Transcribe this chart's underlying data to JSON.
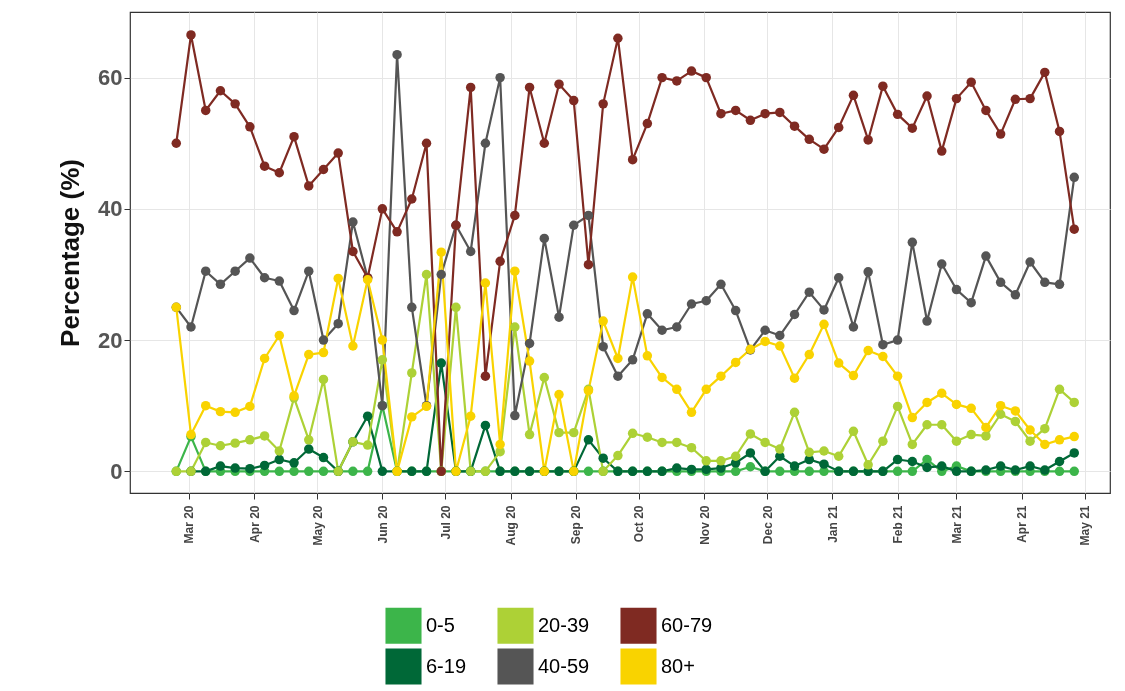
{
  "chart_data": {
    "type": "line",
    "ylabel": "Percentage (%)",
    "marker": "circle",
    "line_style": "solid",
    "grid": true,
    "legend": "bottom",
    "x": [
      "2020-02-24",
      "2020-03-02",
      "2020-03-09",
      "2020-03-16",
      "2020-03-23",
      "2020-03-30",
      "2020-04-06",
      "2020-04-13",
      "2020-04-20",
      "2020-04-27",
      "2020-05-04",
      "2020-05-11",
      "2020-05-18",
      "2020-05-25",
      "2020-06-01",
      "2020-06-08",
      "2020-06-15",
      "2020-06-22",
      "2020-06-29",
      "2020-07-06",
      "2020-07-13",
      "2020-07-20",
      "2020-07-27",
      "2020-08-03",
      "2020-08-10",
      "2020-08-17",
      "2020-08-24",
      "2020-08-31",
      "2020-09-07",
      "2020-09-14",
      "2020-09-21",
      "2020-09-28",
      "2020-10-05",
      "2020-10-12",
      "2020-10-19",
      "2020-10-26",
      "2020-11-02",
      "2020-11-09",
      "2020-11-16",
      "2020-11-23",
      "2020-11-30",
      "2020-12-07",
      "2020-12-14",
      "2020-12-21",
      "2020-12-28",
      "2021-01-04",
      "2021-01-11",
      "2021-01-18",
      "2021-01-25",
      "2021-02-01",
      "2021-02-08",
      "2021-02-15",
      "2021-02-22",
      "2021-03-01",
      "2021-03-08",
      "2021-03-15",
      "2021-03-22",
      "2021-03-29",
      "2021-04-05",
      "2021-04-12",
      "2021-04-19",
      "2021-04-26"
    ],
    "xlim": [
      "2020-02-02",
      "2021-05-13"
    ],
    "xticks": [
      {
        "value": "2020-03-01",
        "label": "Mar 20"
      },
      {
        "value": "2020-04-01",
        "label": "Apr 20"
      },
      {
        "value": "2020-05-01",
        "label": "May 20"
      },
      {
        "value": "2020-06-01",
        "label": "Jun 20"
      },
      {
        "value": "2020-07-01",
        "label": "Jul 20"
      },
      {
        "value": "2020-08-01",
        "label": "Aug 20"
      },
      {
        "value": "2020-09-01",
        "label": "Sep 20"
      },
      {
        "value": "2020-10-01",
        "label": "Oct 20"
      },
      {
        "value": "2020-11-01",
        "label": "Nov 20"
      },
      {
        "value": "2020-12-01",
        "label": "Dec 20"
      },
      {
        "value": "2021-01-01",
        "label": "Jan 21"
      },
      {
        "value": "2021-02-01",
        "label": "Feb 21"
      },
      {
        "value": "2021-03-01",
        "label": "Mar 21"
      },
      {
        "value": "2021-04-01",
        "label": "Apr 21"
      },
      {
        "value": "2021-05-01",
        "label": "May 21"
      }
    ],
    "ylim": [
      -3.3,
      70
    ],
    "yticks": [
      0,
      20,
      40,
      60
    ],
    "series": [
      {
        "name": "0-5",
        "color": "#3cb54a",
        "values": [
          0,
          5.3,
          0,
          0,
          0,
          0,
          0,
          0,
          0,
          0,
          0,
          0,
          0,
          0,
          10,
          0,
          0,
          0,
          0,
          0,
          0,
          0,
          0,
          0,
          0,
          0,
          0,
          0,
          0,
          0,
          0,
          0,
          0,
          0,
          0,
          0,
          0,
          0,
          0,
          0.7,
          0,
          0,
          0,
          0,
          0,
          0,
          0,
          0,
          0,
          0,
          0,
          1.8,
          0,
          0.8,
          0,
          0,
          0,
          0,
          0,
          0,
          0,
          0
        ]
      },
      {
        "name": "6-19",
        "color": "#006837",
        "values": [
          null,
          0,
          0,
          0.8,
          0.5,
          0.4,
          0.9,
          1.8,
          1.3,
          3.4,
          2.1,
          0,
          4.5,
          8.4,
          0,
          0,
          0,
          0,
          16.5,
          0,
          0,
          7,
          0,
          0,
          0,
          0,
          0,
          0,
          4.8,
          2,
          0,
          0,
          0,
          0,
          0.5,
          0.3,
          0.3,
          0.5,
          1.3,
          2.8,
          0,
          2.3,
          0.8,
          1.8,
          1.1,
          0,
          0,
          0,
          0,
          1.8,
          1.5,
          0.6,
          0.8,
          0,
          0,
          0.2,
          0.8,
          0.2,
          0.8,
          0.2,
          1.5,
          2.8
        ]
      },
      {
        "name": "20-39",
        "color": "#add136",
        "values": [
          0,
          0,
          4.4,
          3.9,
          4.3,
          4.8,
          5.4,
          3.1,
          11.2,
          4.8,
          14,
          0,
          4.5,
          4,
          17,
          0,
          15,
          30,
          0,
          25,
          0,
          0,
          3,
          22,
          5.6,
          14.3,
          5.9,
          5.9,
          12.5,
          0,
          2.4,
          5.8,
          5.2,
          4.4,
          4.4,
          3.6,
          1.6,
          1.6,
          2.3,
          5.7,
          4.4,
          3.4,
          9,
          2.9,
          3.1,
          2.3,
          6.1,
          1,
          4.6,
          9.9,
          4.1,
          7.1,
          7.1,
          4.6,
          5.6,
          5.4,
          8.7,
          7.6,
          4.6,
          6.5,
          12.5,
          10.5
        ]
      },
      {
        "name": "40-59",
        "color": "#555555",
        "values": [
          25,
          22,
          30.5,
          28.5,
          30.5,
          32.5,
          29.5,
          29,
          24.5,
          30.5,
          20,
          22.5,
          38,
          29.5,
          10,
          63.5,
          25,
          10,
          30,
          37.5,
          33.5,
          50,
          60,
          8.5,
          19.5,
          35.5,
          23.5,
          37.5,
          39,
          19,
          14.5,
          17,
          24,
          21.5,
          22,
          25.5,
          26,
          28.5,
          24.5,
          18.5,
          21.5,
          20.7,
          23.9,
          27.3,
          24.6,
          29.5,
          22,
          30.4,
          19.3,
          20,
          34.9,
          22.9,
          31.6,
          27.7,
          25.7,
          32.8,
          28.8,
          26.9,
          31.9,
          28.8,
          28.5,
          44.8
        ]
      },
      {
        "name": "60-79",
        "color": "#7f2a22",
        "values": [
          50,
          66.5,
          55,
          58,
          56,
          52.5,
          46.5,
          45.5,
          51,
          43.5,
          46,
          48.5,
          33.5,
          29.5,
          40,
          36.5,
          41.5,
          50,
          0,
          37.5,
          58.5,
          14.5,
          32,
          39,
          58.5,
          50,
          59,
          56.5,
          31.5,
          56,
          66,
          47.5,
          53,
          60,
          59.5,
          61,
          60,
          54.5,
          55,
          53.5,
          54.5,
          54.7,
          52.6,
          50.6,
          49.1,
          52.4,
          57.3,
          50.5,
          58.7,
          54.4,
          52.3,
          57.2,
          48.8,
          56.8,
          59.3,
          55,
          51.4,
          56.7,
          56.8,
          60.8,
          51.8,
          36.9
        ]
      },
      {
        "name": "80+",
        "color": "#f9d300",
        "values": [
          25,
          5.6,
          10,
          9.1,
          9,
          9.9,
          17.2,
          20.7,
          11.5,
          17.8,
          18.1,
          29.4,
          19.1,
          29.2,
          20,
          0,
          8.3,
          9.9,
          33.4,
          0,
          8.4,
          28.7,
          4.1,
          30.5,
          16.8,
          0,
          11.7,
          0,
          12.3,
          22.9,
          17.2,
          29.6,
          17.6,
          14.3,
          12.5,
          9,
          12.5,
          14.5,
          16.6,
          18.6,
          19.8,
          19.1,
          14.2,
          17.8,
          22.4,
          16.5,
          14.6,
          18.4,
          17.5,
          14.5,
          8.2,
          10.5,
          11.9,
          10.2,
          9.6,
          6.7,
          10,
          9.2,
          6.3,
          4.1,
          4.8,
          5.3
        ]
      }
    ]
  }
}
